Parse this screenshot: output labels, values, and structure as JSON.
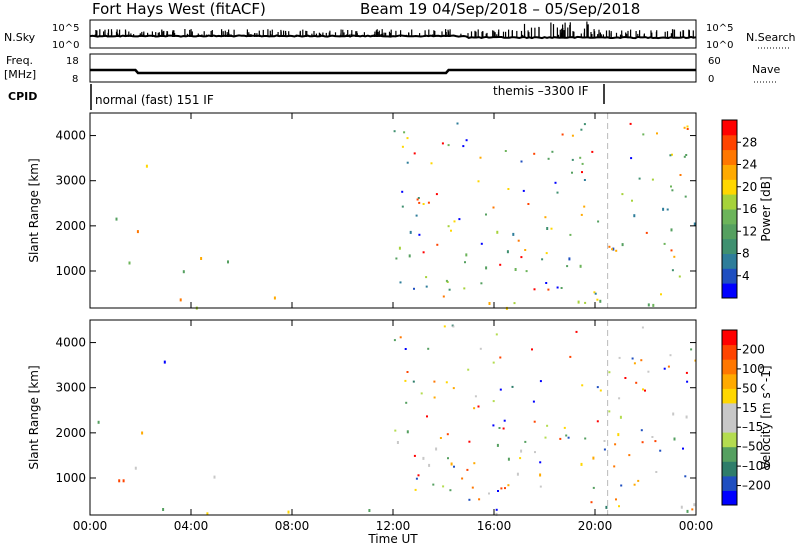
{
  "header": {
    "title": "Fort Hays West (fitACF)",
    "beam_info": "Beam 19  04/Sep/2018 – 05/Sep/2018"
  },
  "top_panels": {
    "nsky_label": "N.Sky",
    "nsky_ticks": [
      "10^5",
      "10^0"
    ],
    "nsearch_label": "N.Search",
    "nsearch_ticks": [
      "10^5",
      "10^0"
    ],
    "freq_label": [
      "Freq.",
      "[MHz]"
    ],
    "freq_ticks": [
      "18",
      "8"
    ],
    "nave_label": "Nave",
    "nave_ticks": [
      "60",
      "0"
    ],
    "cpid_label": "CPID",
    "cpid_modes": [
      "normal (fast) 151 IF",
      "themis –3300 IF"
    ]
  },
  "chart_data": [
    {
      "type": "heatmap",
      "name": "power-panel",
      "ylabel": "Slant Range [km]",
      "xlabel": "",
      "x_ticks": [
        "00:00",
        "04:00",
        "08:00",
        "12:00",
        "16:00",
        "20:00",
        "00:00"
      ],
      "y_ticks": [
        1000,
        2000,
        3000,
        4000
      ],
      "xlim_hours": [
        0,
        24
      ],
      "ylim_km": [
        180,
        4500
      ],
      "colorbar": {
        "label": "Power [dB]",
        "ticks": [
          "4",
          "8",
          "12",
          "16",
          "20",
          "24",
          "28"
        ],
        "colors": [
          "#0000ff",
          "#1f4fc0",
          "#2e7d9a",
          "#3f9070",
          "#55a060",
          "#6cb45a",
          "#a6d23a",
          "#ffd700",
          "#ffaa00",
          "#ff7700",
          "#ff4400",
          "#ff0000"
        ]
      },
      "regions": [
        {
          "t0": 0.0,
          "t1": 1.2,
          "r0": 1600,
          "r1": 2400,
          "level": 0.55
        },
        {
          "t0": 1.8,
          "t1": 3.0,
          "r0": 1700,
          "r1": 2300,
          "level": 0.6
        },
        {
          "t0": 2.0,
          "t1": 3.2,
          "r0": 2900,
          "r1": 3700,
          "level": 0.5
        },
        {
          "t0": 1.5,
          "t1": 2.0,
          "r0": 3600,
          "r1": 4000,
          "level": 0.45
        },
        {
          "t0": 1.0,
          "t1": 6.0,
          "r0": 950,
          "r1": 1500,
          "level": 0.6
        },
        {
          "t0": 12.0,
          "t1": 21.5,
          "r0": 1300,
          "r1": 2100,
          "level": 0.35
        },
        {
          "t0": 14.0,
          "t1": 20.0,
          "r0": 1050,
          "r1": 1400,
          "level": 0.4
        },
        {
          "t0": 20.0,
          "t1": 24.0,
          "r0": 1800,
          "r1": 2500,
          "level": 0.35
        },
        {
          "t0": 0.0,
          "t1": 24.0,
          "r0": 200,
          "r1": 450,
          "level": 0.55
        }
      ]
    },
    {
      "type": "heatmap",
      "name": "velocity-panel",
      "ylabel": "Slant Range [km]",
      "xlabel": "Time UT",
      "x_ticks": [
        "00:00",
        "04:00",
        "08:00",
        "12:00",
        "16:00",
        "20:00",
        "00:00"
      ],
      "y_ticks": [
        1000,
        2000,
        3000,
        4000
      ],
      "xlim_hours": [
        0,
        24
      ],
      "ylim_km": [
        180,
        4500
      ],
      "colorbar": {
        "label": "Velocity [m s^-1]",
        "ticks": [
          "200",
          "100",
          "50",
          "15",
          "–15",
          "–50",
          "–100",
          "–200"
        ],
        "colors": [
          "#0000ff",
          "#1f4fc0",
          "#2e7d6a",
          "#55a060",
          "#b4dc50",
          "#c8c8c8",
          "#c8c8c8",
          "#ffd700",
          "#ffaa00",
          "#ff7700",
          "#ff4400",
          "#ff0000"
        ]
      },
      "regions": [
        {
          "t0": 0.0,
          "t1": 1.2,
          "r0": 1600,
          "r1": 2400,
          "level": 0.5
        },
        {
          "t0": 1.8,
          "t1": 3.0,
          "r0": 1700,
          "r1": 2300,
          "level": 0.5
        },
        {
          "t0": 2.0,
          "t1": 3.2,
          "r0": 3100,
          "r1": 3700,
          "level": 0.02
        },
        {
          "t0": 1.0,
          "t1": 6.0,
          "r0": 950,
          "r1": 1500,
          "level": 0.72
        },
        {
          "t0": 12.0,
          "t1": 21.5,
          "r0": 1300,
          "r1": 2100,
          "level": 0.5
        },
        {
          "t0": 14.0,
          "t1": 20.0,
          "r0": 1050,
          "r1": 1400,
          "level": 0.5
        },
        {
          "t0": 20.0,
          "t1": 24.0,
          "r0": 1800,
          "r1": 2500,
          "level": 0.5
        },
        {
          "t0": 0.0,
          "t1": 24.0,
          "r0": 200,
          "r1": 450,
          "level": 0.42
        }
      ]
    }
  ],
  "colors": {
    "axis": "#000000",
    "dashed_marker": "#bbbbbb"
  }
}
